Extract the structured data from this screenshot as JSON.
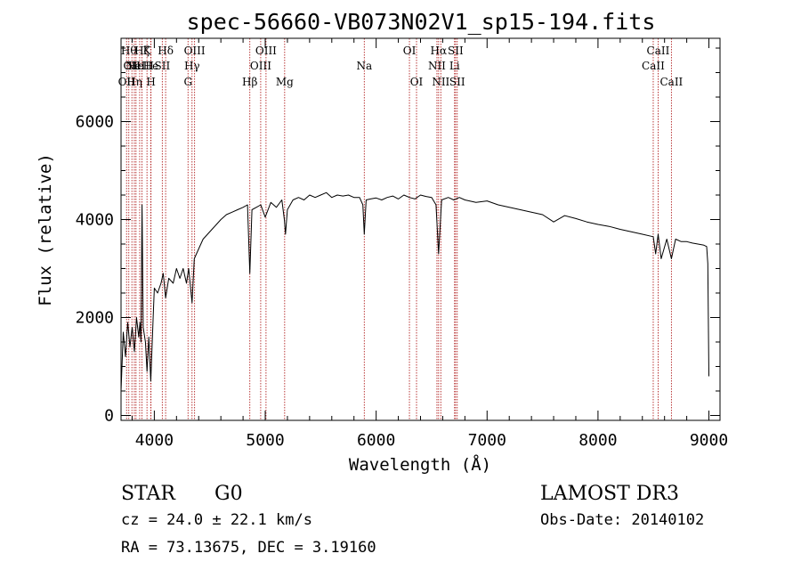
{
  "chart_data": {
    "type": "line",
    "title": "spec-56660-VB073N02V1_sp15-194.fits",
    "xlabel": "Wavelength (Å)",
    "ylabel": "Flux (relative)",
    "xlim": [
      3700,
      9100
    ],
    "ylim": [
      -100,
      7700
    ],
    "xticks": [
      4000,
      5000,
      6000,
      7000,
      8000,
      9000
    ],
    "yticks": [
      0,
      2000,
      4000,
      6000
    ],
    "series": [
      {
        "name": "flux",
        "x": [
          3700,
          3720,
          3740,
          3760,
          3780,
          3800,
          3820,
          3840,
          3860,
          3870,
          3880,
          3889,
          3900,
          3920,
          3934,
          3950,
          3968,
          3990,
          4000,
          4030,
          4060,
          4080,
          4102,
          4130,
          4170,
          4200,
          4230,
          4260,
          4290,
          4310,
          4340,
          4360,
          4400,
          4440,
          4480,
          4520,
          4560,
          4600,
          4650,
          4700,
          4750,
          4800,
          4840,
          4861,
          4880,
          4920,
          4960,
          5000,
          5050,
          5100,
          5150,
          5172,
          5183,
          5200,
          5250,
          5300,
          5350,
          5400,
          5450,
          5500,
          5550,
          5600,
          5650,
          5700,
          5750,
          5800,
          5850,
          5880,
          5893,
          5910,
          5950,
          6000,
          6050,
          6100,
          6150,
          6200,
          6250,
          6300,
          6350,
          6400,
          6450,
          6500,
          6540,
          6563,
          6590,
          6650,
          6700,
          6750,
          6800,
          6900,
          7000,
          7100,
          7200,
          7300,
          7400,
          7500,
          7600,
          7700,
          7800,
          7900,
          8000,
          8100,
          8200,
          8300,
          8400,
          8498,
          8520,
          8542,
          8570,
          8620,
          8662,
          8700,
          8750,
          8800,
          8850,
          8900,
          8950,
          8980,
          8990,
          9000
        ],
        "y": [
          500,
          1700,
          1200,
          1900,
          1400,
          1800,
          1300,
          2000,
          1600,
          1900,
          1500,
          4300,
          1800,
          1500,
          900,
          1600,
          700,
          2000,
          2600,
          2500,
          2700,
          2900,
          2400,
          2800,
          2700,
          3000,
          2800,
          3000,
          2700,
          3000,
          2300,
          3200,
          3400,
          3600,
          3700,
          3800,
          3900,
          4000,
          4100,
          4150,
          4200,
          4250,
          4300,
          2900,
          4200,
          4250,
          4300,
          4050,
          4350,
          4250,
          4400,
          4000,
          3700,
          4200,
          4400,
          4450,
          4400,
          4500,
          4450,
          4500,
          4550,
          4450,
          4500,
          4480,
          4500,
          4450,
          4450,
          4300,
          3700,
          4400,
          4420,
          4440,
          4400,
          4450,
          4480,
          4420,
          4500,
          4450,
          4420,
          4500,
          4470,
          4450,
          4300,
          3300,
          4400,
          4450,
          4400,
          4450,
          4400,
          4350,
          4380,
          4300,
          4250,
          4200,
          4150,
          4100,
          3950,
          4080,
          4020,
          3950,
          3900,
          3860,
          3800,
          3750,
          3700,
          3650,
          3300,
          3700,
          3200,
          3600,
          3200,
          3600,
          3550,
          3550,
          3520,
          3500,
          3480,
          3450,
          3100,
          800
        ]
      }
    ],
    "lines": [
      {
        "x": 3750,
        "row": 3,
        "label": "OII"
      },
      {
        "x": 3770,
        "row": 1,
        "label": "Hθ"
      },
      {
        "x": 3798,
        "row": 2,
        "label": "OII"
      },
      {
        "x": 3820,
        "row": 3,
        "label": "Hη"
      },
      {
        "x": 3835,
        "row": 2,
        "label": "He"
      },
      {
        "x": 3868,
        "row": 2,
        "label": "NeIII"
      },
      {
        "x": 3889,
        "row": 1,
        "label": "Hζ"
      },
      {
        "x": 3934,
        "row": 1,
        "label": "K"
      },
      {
        "x": 3968,
        "row": 2,
        "label": "He"
      },
      {
        "x": 3970,
        "row": 3,
        "label": "H"
      },
      {
        "x": 4072,
        "row": 2,
        "label": "SII"
      },
      {
        "x": 4102,
        "row": 1,
        "label": "Hδ"
      },
      {
        "x": 4304,
        "row": 3,
        "label": "G"
      },
      {
        "x": 4340,
        "row": 2,
        "label": "Hγ"
      },
      {
        "x": 4363,
        "row": 1,
        "label": "OIII"
      },
      {
        "x": 4861,
        "row": 3,
        "label": "Hβ"
      },
      {
        "x": 4959,
        "row": 2,
        "label": "OIII"
      },
      {
        "x": 5007,
        "row": 1,
        "label": "OIII"
      },
      {
        "x": 5175,
        "row": 3,
        "label": "Mg"
      },
      {
        "x": 5893,
        "row": 2,
        "label": "Na"
      },
      {
        "x": 6300,
        "row": 1,
        "label": "OI"
      },
      {
        "x": 6364,
        "row": 3,
        "label": "OI"
      },
      {
        "x": 6548,
        "row": 2,
        "label": "NII"
      },
      {
        "x": 6563,
        "row": 1,
        "label": "Hα"
      },
      {
        "x": 6583,
        "row": 3,
        "label": "NII"
      },
      {
        "x": 6707,
        "row": 2,
        "label": "Li"
      },
      {
        "x": 6716,
        "row": 1,
        "label": "SII"
      },
      {
        "x": 6731,
        "row": 3,
        "label": "SII"
      },
      {
        "x": 8498,
        "row": 2,
        "label": "CaII"
      },
      {
        "x": 8542,
        "row": 1,
        "label": "CaII"
      },
      {
        "x": 8662,
        "row": 3,
        "label": "CaII"
      }
    ]
  },
  "info": {
    "object_class": "STAR",
    "subclass": "G0",
    "survey": "LAMOST DR3",
    "cz": "cz = 24.0 ± 22.1 km/s",
    "obs_date": "Obs-Date: 20140102",
    "coords": "RA =  73.13675, DEC =   3.19160"
  },
  "colors": {
    "line": "#000000",
    "marker": "#b22222",
    "axis": "#000000"
  }
}
